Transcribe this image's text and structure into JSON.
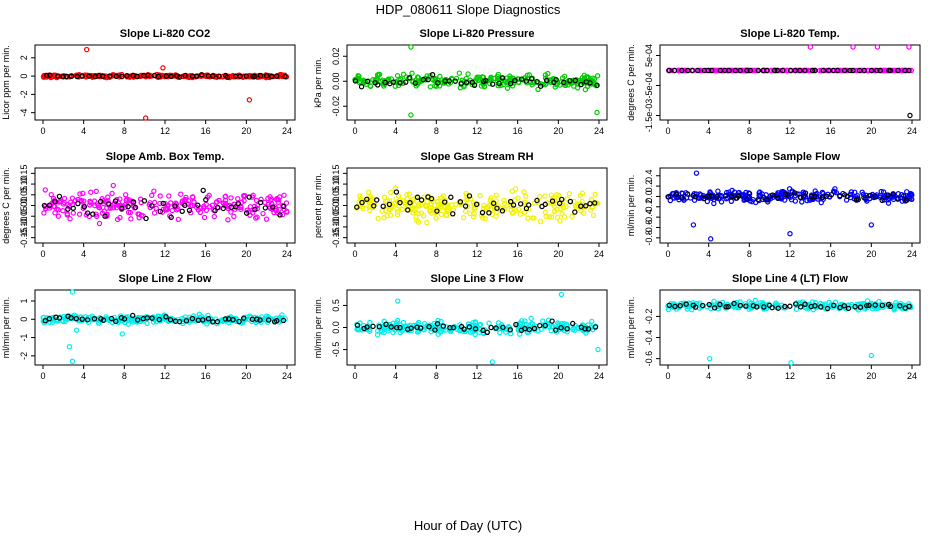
{
  "page": {
    "title": "HDP_080611  Slope Diagnostics",
    "xlabel": "Hour of Day (UTC)"
  },
  "chart_data": [
    {
      "type": "scatter",
      "title": "Slope Li-820 CO2",
      "ylabel": "Licor ppm per min.",
      "xticks": [
        "0",
        "4",
        "8",
        "12",
        "16",
        "20",
        "24"
      ],
      "yticks": [
        {
          "v": -4,
          "label": "-4"
        },
        {
          "v": -2,
          "label": "-2"
        },
        {
          "v": 0,
          "label": "0"
        },
        {
          "v": 2,
          "label": "2"
        }
      ],
      "xlim": [
        0,
        24
      ],
      "ylim": [
        -4.8,
        3.4
      ],
      "color": "#ff0000",
      "spread": 0.25,
      "outliers": [
        [
          4.3,
          2.9
        ],
        [
          10.1,
          -4.6
        ],
        [
          20.3,
          -2.6
        ],
        [
          11.8,
          0.9
        ]
      ]
    },
    {
      "type": "scatter",
      "title": "Slope Li-820 Pressure",
      "ylabel": "kPa per min.",
      "xticks": [
        "0",
        "4",
        "8",
        "12",
        "16",
        "20",
        "24"
      ],
      "yticks": [
        {
          "v": -0.02,
          "label": "-0.02"
        },
        {
          "v": 0.0,
          "label": "0.00"
        },
        {
          "v": 0.02,
          "label": "0.02"
        }
      ],
      "xlim": [
        0,
        24
      ],
      "ylim": [
        -0.031,
        0.029
      ],
      "color": "#00cc00",
      "spread": 0.009,
      "outliers": [
        [
          5.5,
          0.028
        ],
        [
          5.5,
          -0.027
        ],
        [
          23.8,
          -0.025
        ]
      ]
    },
    {
      "type": "scatter",
      "title": "Slope Li-820 Temp.",
      "ylabel": "degrees C per min.",
      "xticks": [
        "0",
        "4",
        "8",
        "12",
        "16",
        "20",
        "24"
      ],
      "yticks": [
        {
          "v": -0.0015,
          "label": "-1.5e-03"
        },
        {
          "v": -0.0005,
          "label": "-5e-04"
        },
        {
          "v": 0.0005,
          "label": "5e-04"
        }
      ],
      "xlim": [
        0,
        24
      ],
      "ylim": [
        -0.00165,
        0.00085
      ],
      "color": "#ff00ff",
      "spread": 0.0,
      "outliers": [
        [
          14.0,
          0.0008
        ],
        [
          18.2,
          0.0008
        ],
        [
          20.6,
          0.0008
        ],
        [
          23.7,
          0.0008
        ],
        [
          23.8,
          -0.0015
        ]
      ]
    },
    {
      "type": "scatter",
      "title": "Slope Amb. Box Temp.",
      "ylabel": "degrees C per min.",
      "xticks": [
        "0",
        "4",
        "8",
        "12",
        "16",
        "20",
        "24"
      ],
      "yticks": [
        {
          "v": -0.15,
          "label": "-0.15"
        },
        {
          "v": -0.1,
          "label": "-0.10"
        },
        {
          "v": -0.05,
          "label": "-0.05"
        },
        {
          "v": 0.0,
          "label": "0.00"
        },
        {
          "v": 0.05,
          "label": "0.05"
        },
        {
          "v": 0.1,
          "label": "0.10"
        },
        {
          "v": 0.15,
          "label": "0.15"
        }
      ],
      "xlim": [
        0,
        24
      ],
      "ylim": [
        -0.175,
        0.175
      ],
      "color": "#ff00ff",
      "spread": 0.11,
      "outliers": []
    },
    {
      "type": "scatter",
      "title": "Slope Gas Stream RH",
      "ylabel": "percent per min.",
      "xticks": [
        "0",
        "4",
        "8",
        "12",
        "16",
        "20",
        "24"
      ],
      "yticks": [
        {
          "v": -0.15,
          "label": "-0.15"
        },
        {
          "v": -0.1,
          "label": "-0.10"
        },
        {
          "v": -0.05,
          "label": "-0.05"
        },
        {
          "v": 0.0,
          "label": "0.00"
        },
        {
          "v": 0.05,
          "label": "0.05"
        },
        {
          "v": 0.1,
          "label": "0.10"
        },
        {
          "v": 0.15,
          "label": "0.15"
        }
      ],
      "xlim": [
        0,
        24
      ],
      "ylim": [
        -0.175,
        0.175
      ],
      "color": "#f2f200",
      "spread": 0.11,
      "outliers": []
    },
    {
      "type": "scatter",
      "title": "Slope Sample Flow",
      "ylabel": "ml/min per min.",
      "xticks": [
        "0",
        "4",
        "8",
        "12",
        "16",
        "20",
        "24"
      ],
      "yticks": [
        {
          "v": -0.8,
          "label": "-0.8"
        },
        {
          "v": -0.6,
          "label": "-0.6"
        },
        {
          "v": -0.4,
          "label": "-0.4"
        },
        {
          "v": -0.2,
          "label": "-0.2"
        },
        {
          "v": 0.0,
          "label": "0.0"
        },
        {
          "v": 0.2,
          "label": "0.2"
        },
        {
          "v": 0.4,
          "label": "0.4"
        }
      ],
      "xlim": [
        0,
        24
      ],
      "ylim": [
        -0.9,
        0.55
      ],
      "color": "#0000ff",
      "spread": 0.18,
      "outliers": [
        [
          2.8,
          0.45
        ],
        [
          4.2,
          -0.82
        ],
        [
          2.5,
          -0.55
        ],
        [
          12.0,
          -0.72
        ],
        [
          20.0,
          -0.55
        ]
      ]
    },
    {
      "type": "scatter",
      "title": "Slope Line 2 Flow",
      "ylabel": "ml/min per min.",
      "xticks": [
        "0",
        "4",
        "8",
        "12",
        "16",
        "20",
        "24"
      ],
      "yticks": [
        {
          "v": -2,
          "label": "-2"
        },
        {
          "v": -1,
          "label": "-1"
        },
        {
          "v": 0,
          "label": "0"
        },
        {
          "v": 1,
          "label": "1"
        }
      ],
      "xlim": [
        0,
        24
      ],
      "ylim": [
        -2.5,
        1.6
      ],
      "color": "#00eeee",
      "spread": 0.35,
      "outliers": [
        [
          2.9,
          1.5
        ],
        [
          2.6,
          -1.5
        ],
        [
          2.9,
          -2.3
        ],
        [
          3.3,
          -0.6
        ],
        [
          7.8,
          -0.8
        ]
      ]
    },
    {
      "type": "scatter",
      "title": "Slope Line 3 Flow",
      "ylabel": "ml/min per min.",
      "xticks": [
        "0",
        "4",
        "8",
        "12",
        "16",
        "20",
        "24"
      ],
      "yticks": [
        {
          "v": -0.5,
          "label": "-0.5"
        },
        {
          "v": 0.0,
          "label": "0.0"
        },
        {
          "v": 0.5,
          "label": "0.5"
        }
      ],
      "xlim": [
        0,
        24
      ],
      "ylim": [
        -0.85,
        0.85
      ],
      "color": "#00eeee",
      "spread": 0.25,
      "outliers": [
        [
          13.5,
          -0.78
        ],
        [
          20.3,
          0.75
        ],
        [
          4.2,
          0.6
        ],
        [
          23.9,
          -0.5
        ]
      ]
    },
    {
      "type": "scatter",
      "title": "Slope Line 4 (LT) Flow",
      "ylabel": "ml/min per min.",
      "xticks": [
        "0",
        "4",
        "8",
        "12",
        "16",
        "20",
        "24"
      ],
      "yticks": [
        {
          "v": -0.6,
          "label": "-0.6"
        },
        {
          "v": -0.4,
          "label": "-0.4"
        },
        {
          "v": -0.2,
          "label": "-0.2"
        }
      ],
      "xlim": [
        0,
        24
      ],
      "ylim": [
        -0.66,
        0.05
      ],
      "color": "#00eeee",
      "spread": 0.06,
      "outliers": [
        [
          4.1,
          -0.6
        ],
        [
          12.1,
          -0.64
        ],
        [
          20.0,
          -0.57
        ]
      ]
    }
  ]
}
